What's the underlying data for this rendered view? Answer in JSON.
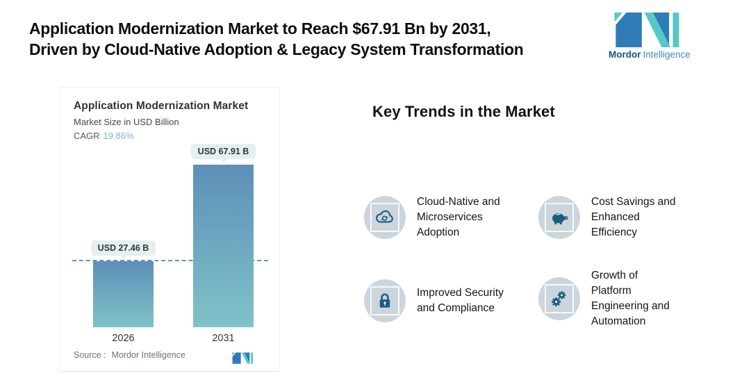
{
  "header": {
    "title": "Application Modernization Market to Reach $67.91 Bn by 2031,\nDriven by Cloud-Native Adoption & Legacy System Transformation",
    "brand": {
      "name_bold": "Mordor",
      "name_light": "Intelligence"
    }
  },
  "chart_card": {
    "title": "Application Modernization Market",
    "subtitle": "Market Size in USD Billion",
    "cagr_label": "CAGR",
    "cagr_value": "19.86%",
    "source_label": "Source :",
    "source_value": "Mordor Intelligence"
  },
  "chart_data": {
    "type": "bar",
    "title": "Application Modernization Market",
    "subtitle": "Market Size in USD Billion",
    "cagr": "19.86%",
    "categories": [
      "2026",
      "2031"
    ],
    "values": [
      27.46,
      67.91
    ],
    "bar_labels": [
      "USD 27.46 B",
      "USD 67.91 B"
    ],
    "unit": "USD Billion",
    "ylabel": "Market Size in USD Billion",
    "ylim": [
      0,
      75
    ],
    "gridlines": false,
    "reference_line": {
      "style": "dashed",
      "at_value": 27.46,
      "color": "#5e93c4"
    },
    "bar_gradient_top": "#5d8fb8",
    "bar_gradient_bottom": "#7fc2c8",
    "source": "Mordor Intelligence"
  },
  "trends": {
    "heading": "Key Trends in the Market",
    "items": [
      {
        "icon": "cloud-sync-icon",
        "label": "Cloud-Native and\nMicroservices\nAdoption"
      },
      {
        "icon": "piggy-bank-icon",
        "label": "Cost Savings and\nEnhanced\nEfficiency"
      },
      {
        "icon": "lock-icon",
        "label": "Improved Security\nand Compliance"
      },
      {
        "icon": "gears-icon",
        "label": "Growth of\nPlatform\nEngineering and\nAutomation"
      }
    ]
  },
  "colors": {
    "brand_blue": "#2e7cb5",
    "brand_teal": "#57c7c7",
    "icon_blue": "#1d5c82",
    "icon_circle_bg": "#ccd5db",
    "badge_bg": "#e7eef0",
    "cagr_value": "#7cb1d6",
    "dashed_line": "#5e93c4"
  }
}
